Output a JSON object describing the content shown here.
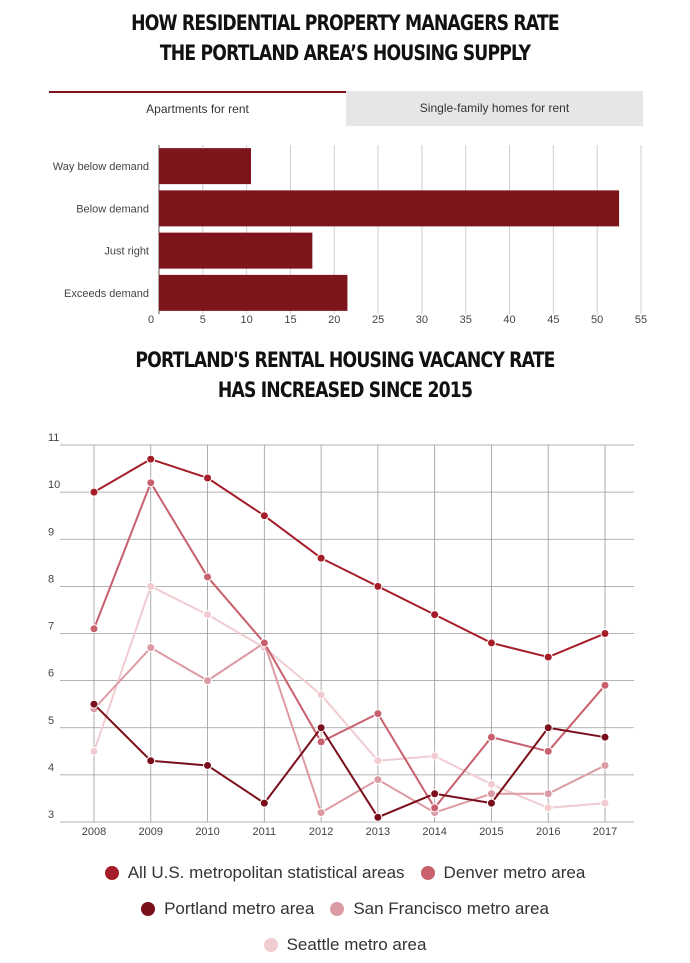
{
  "title1": {
    "line1": "HOW RESIDENTIAL PROPERTY MANAGERS RATE",
    "line2": "THE PORTLAND AREA’S HOUSING SUPPLY"
  },
  "tabs": [
    {
      "label": "Apartments for rent",
      "active": true
    },
    {
      "label": "Single-family homes for rent",
      "active": false
    }
  ],
  "title2": {
    "line1": "PORTLAND'S RENTAL  HOUSING VACANCY RATE",
    "line2": "HAS INCREASED SINCE 2015"
  },
  "colors": {
    "bar": "#7e141c",
    "all_us": "#a61d2a",
    "denver": "#c8606e",
    "portland": "#7a0f1c",
    "san_francisco": "#dc9ba4",
    "seattle": "#f0ccd1"
  },
  "chart_data": [
    {
      "type": "bar",
      "orientation": "horizontal",
      "categories": [
        "Way below demand",
        "Below demand",
        "Just right",
        "Exceeds demand"
      ],
      "values": [
        10.5,
        52.5,
        17.5,
        21.5
      ],
      "xlim": [
        0,
        55
      ],
      "xticks": [
        0,
        5,
        10,
        15,
        20,
        25,
        30,
        35,
        40,
        45,
        50,
        55
      ],
      "grid": true
    },
    {
      "type": "line",
      "x": [
        "2008",
        "2009",
        "2010",
        "2011",
        "2012",
        "2013",
        "2014",
        "2015",
        "2016",
        "2017"
      ],
      "ylim": [
        3,
        11
      ],
      "yticks": [
        3,
        4,
        5,
        6,
        7,
        8,
        9,
        10,
        11
      ],
      "grid": true,
      "legend_position": "bottom",
      "series": [
        {
          "name": "All U.S. metropolitan statistical areas",
          "color_key": "all_us",
          "values": [
            10.0,
            10.7,
            10.3,
            9.5,
            8.6,
            8.0,
            7.4,
            6.8,
            6.5,
            7.0
          ]
        },
        {
          "name": "Denver metro area",
          "color_key": "denver",
          "values": [
            7.1,
            10.2,
            8.2,
            6.8,
            4.7,
            5.3,
            3.3,
            4.8,
            4.5,
            5.9
          ]
        },
        {
          "name": "Portland metro area",
          "color_key": "portland",
          "values": [
            5.5,
            4.3,
            4.2,
            3.4,
            5.0,
            3.1,
            3.6,
            3.4,
            5.0,
            4.8
          ]
        },
        {
          "name": "San Francisco metro area",
          "color_key": "san_francisco",
          "values": [
            5.4,
            6.7,
            6.0,
            6.8,
            3.2,
            3.9,
            3.2,
            3.6,
            3.6,
            4.2
          ]
        },
        {
          "name": "Seattle metro area",
          "color_key": "seattle",
          "values": [
            4.5,
            8.0,
            7.4,
            6.7,
            5.7,
            4.3,
            4.4,
            3.8,
            3.3,
            3.4
          ]
        }
      ]
    }
  ],
  "legend": {
    "rows": [
      [
        {
          "label": "All U.S. metropolitan statistical areas",
          "color_key": "all_us"
        },
        {
          "label": "Denver metro area",
          "color_key": "denver"
        }
      ],
      [
        {
          "label": "Portland metro area",
          "color_key": "portland"
        },
        {
          "label": "San Francisco metro area",
          "color_key": "san_francisco"
        }
      ],
      [
        {
          "label": "Seattle metro area",
          "color_key": "seattle"
        }
      ]
    ]
  }
}
